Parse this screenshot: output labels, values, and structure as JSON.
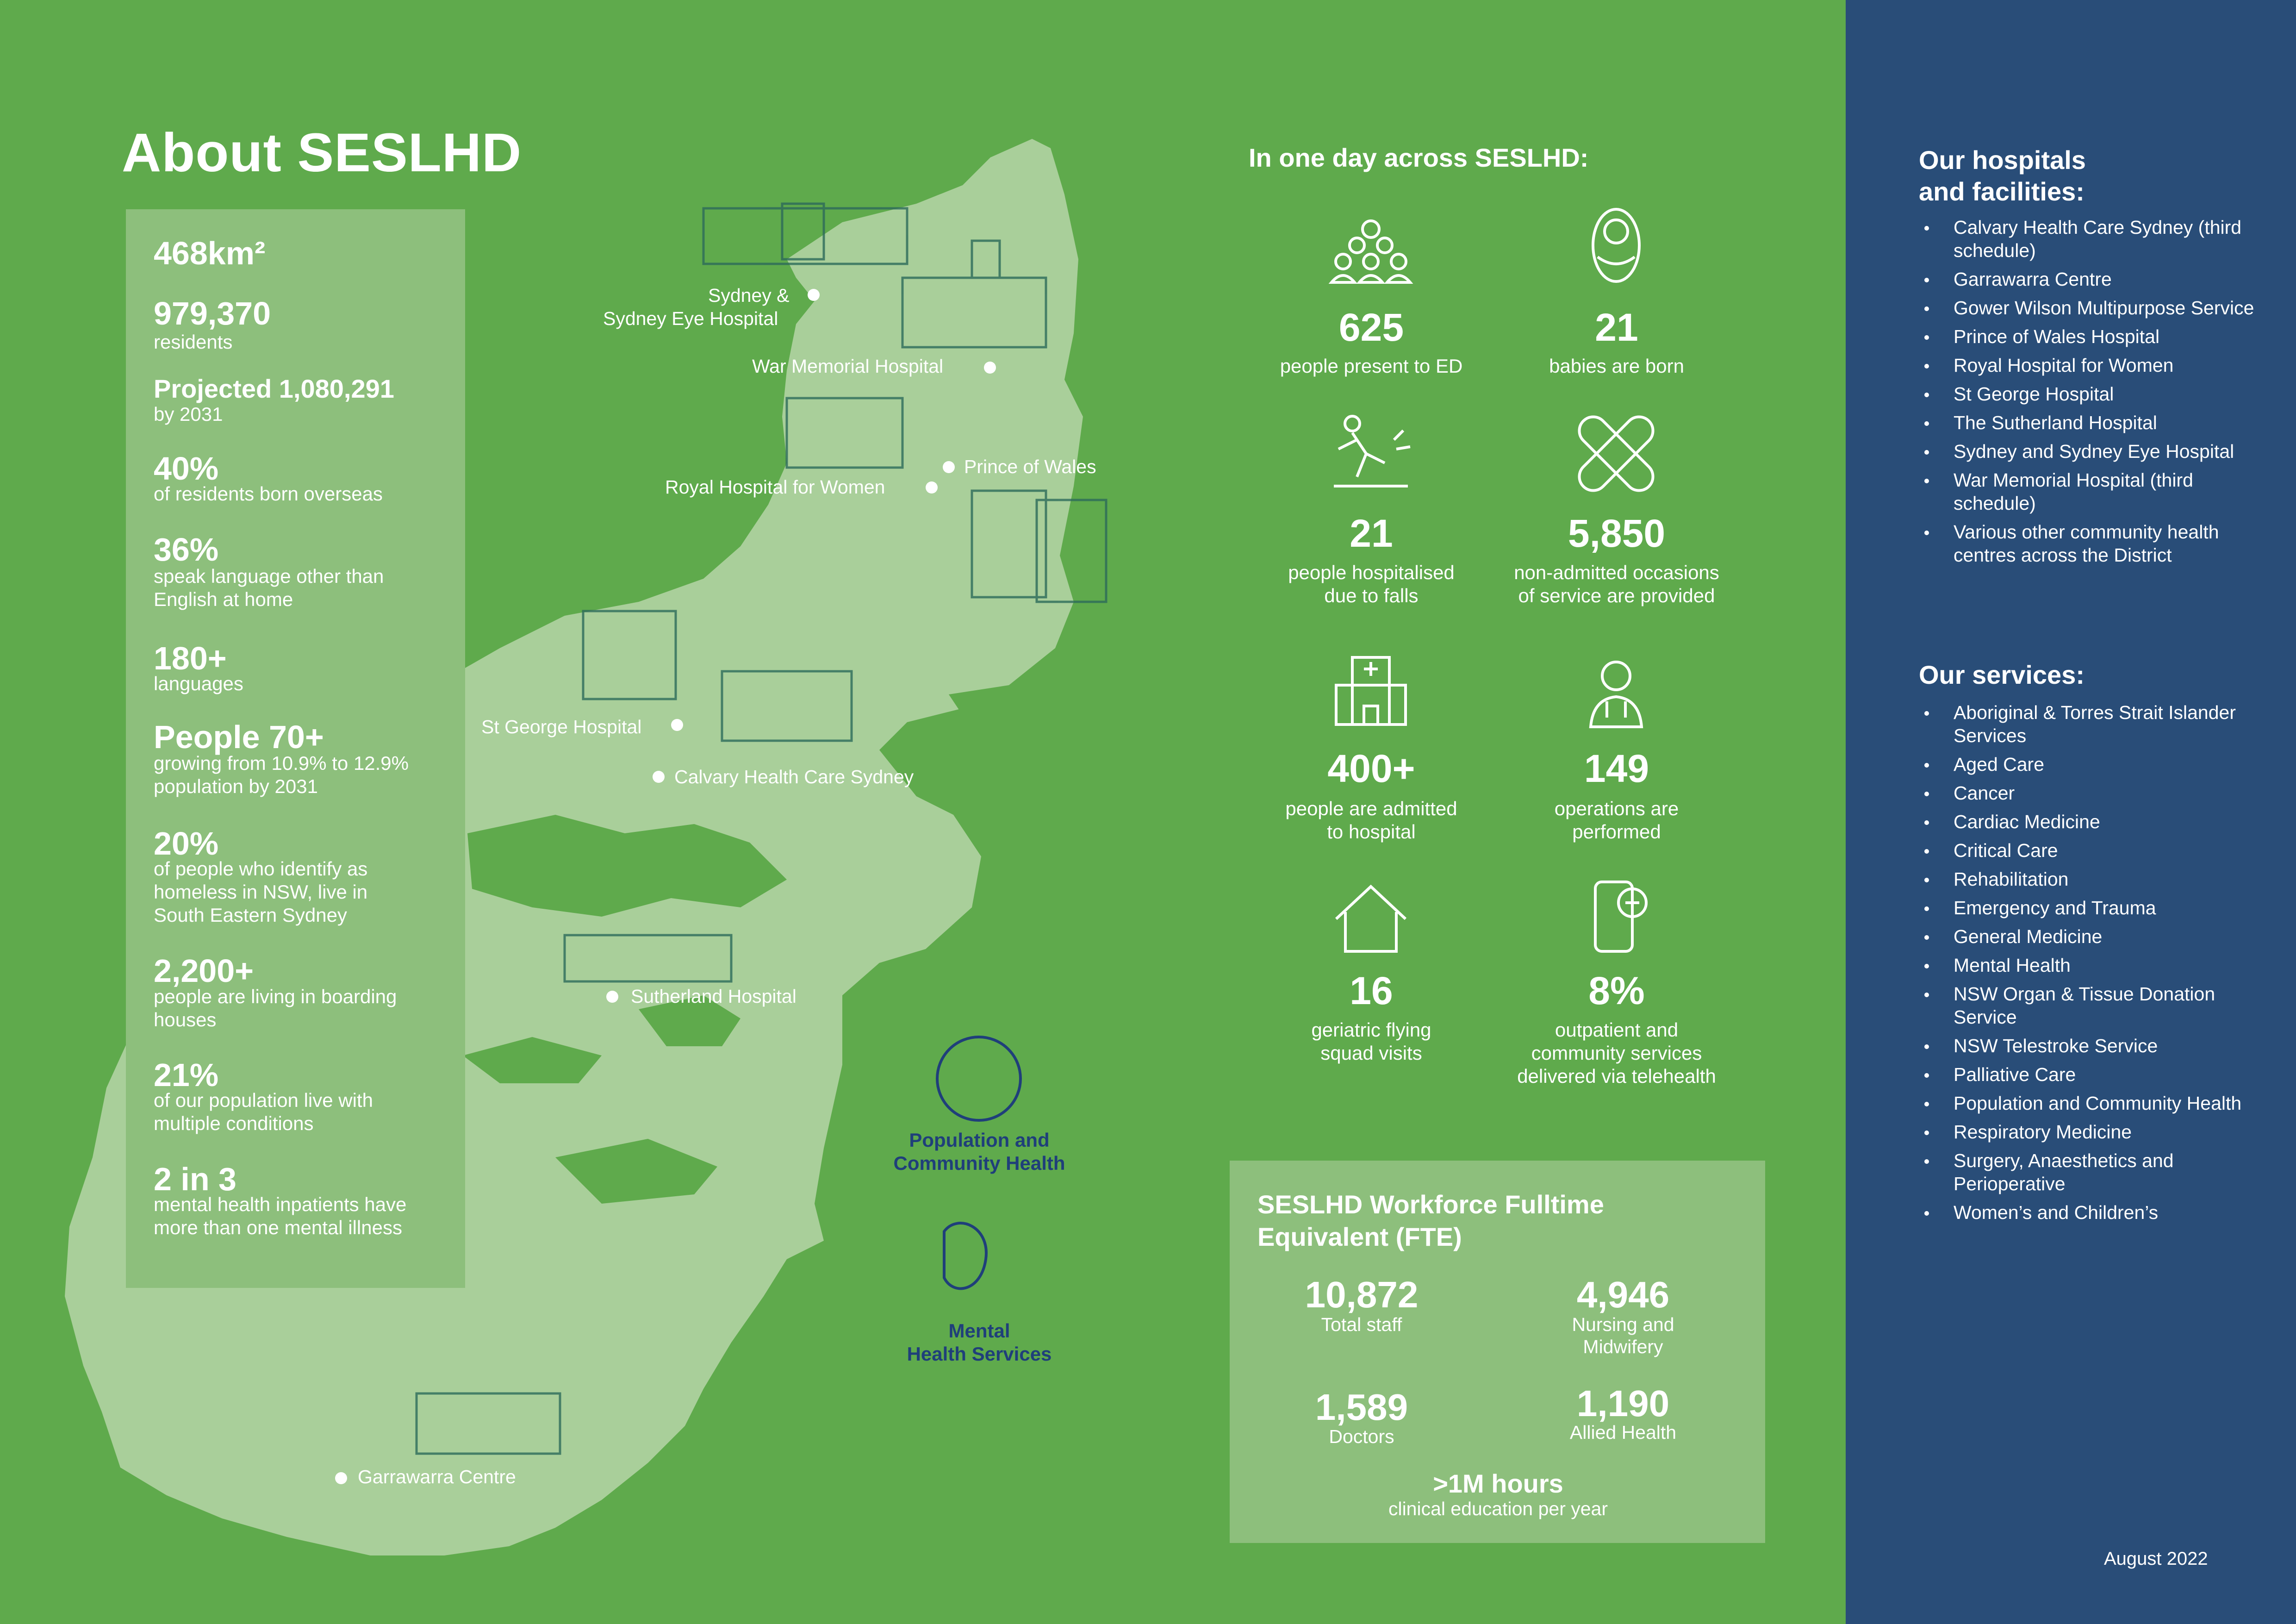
{
  "title": "About SESLHD",
  "stats": [
    {
      "value": "468km²",
      "desc": ""
    },
    {
      "value": "979,370",
      "desc": "residents"
    },
    {
      "value": "Projected 1,080,291",
      "desc": "by 2031"
    },
    {
      "value": "40%",
      "desc": "of residents born overseas"
    },
    {
      "value": "36%",
      "desc": "speak language other than English at home"
    },
    {
      "value": "180+",
      "desc": "languages"
    },
    {
      "value": "People 70+",
      "desc": "growing from 10.9% to 12.9% population by 2031"
    },
    {
      "value": "20%",
      "desc": "of people who identify as homeless in NSW, live in South Eastern Sydney"
    },
    {
      "value": "2,200+",
      "desc": "people are living in boarding houses"
    },
    {
      "value": "21%",
      "desc": "of our population live with multiple conditions"
    },
    {
      "value": "2 in 3",
      "desc": "mental health inpatients have more than one mental illness"
    }
  ],
  "map_labels": {
    "sydney_eye_1": "Sydney &",
    "sydney_eye_2": "Sydney Eye Hospital",
    "war_memorial": "War Memorial Hospital",
    "prince_wales": "Prince of Wales",
    "royal_women": "Royal Hospital for Women",
    "st_george": "St George Hospital",
    "calvary": "Calvary Health Care Sydney",
    "sutherland": "Sutherland Hospital",
    "garrawarra": "Garrawarra Centre",
    "pop_health_1": "Population and",
    "pop_health_2": "Community Health",
    "mental_1": "Mental",
    "mental_2": "Health Services"
  },
  "one_day": {
    "title": "In one day across SESLHD:",
    "items": [
      {
        "icon": "people-group-icon",
        "value": "625",
        "desc1": "people present to ED",
        "desc2": ""
      },
      {
        "icon": "baby-icon",
        "value": "21",
        "desc1": "babies are born",
        "desc2": ""
      },
      {
        "icon": "falling-person-icon",
        "value": "21",
        "desc1": "people hospitalised",
        "desc2": "due to falls"
      },
      {
        "icon": "bandage-icon",
        "value": "5,850",
        "desc1": "non-admitted occasions",
        "desc2": "of service are provided"
      },
      {
        "icon": "hospital-building-icon",
        "value": "400+",
        "desc1": "people are admitted",
        "desc2": "to hospital"
      },
      {
        "icon": "doctor-icon",
        "value": "149",
        "desc1": "operations are",
        "desc2": "performed"
      },
      {
        "icon": "house-icon",
        "value": "16",
        "desc1": "geriatric flying",
        "desc2": "squad visits"
      },
      {
        "icon": "telehealth-phone-icon",
        "value": "8%",
        "desc1": "outpatient and",
        "desc2": "community services",
        "desc3": "delivered via telehealth"
      }
    ]
  },
  "workforce": {
    "title1": "SESLHD Workforce Fulltime",
    "title2": "Equivalent (FTE)",
    "items": [
      {
        "value": "10,872",
        "desc1": "Total staff",
        "desc2": ""
      },
      {
        "value": "4,946",
        "desc1": "Nursing and",
        "desc2": "Midwifery"
      },
      {
        "value": "1,589",
        "desc1": "Doctors",
        "desc2": ""
      },
      {
        "value": "1,190",
        "desc1": "Allied Health",
        "desc2": ""
      }
    ],
    "footer_value": ">1M hours",
    "footer_desc": "clinical education per year"
  },
  "sidebar": {
    "hospitals_title1": "Our hospitals",
    "hospitals_title2": "and facilities:",
    "hospitals": [
      "Calvary Health Care Sydney (third schedule)",
      "Garrawarra Centre",
      "Gower Wilson Multipurpose Service",
      "Prince of Wales Hospital",
      "Royal Hospital for Women",
      "St George Hospital",
      "The Sutherland Hospital",
      "Sydney and Sydney Eye Hospital",
      "War Memorial Hospital (third schedule)",
      "Various other community health centres across the District"
    ],
    "services_title": "Our services:",
    "services": [
      "Aboriginal & Torres Strait Islander Services",
      "Aged Care",
      "Cancer",
      "Cardiac Medicine",
      "Critical Care",
      "Rehabilitation",
      "Emergency and Trauma",
      "General Medicine",
      "Mental Health",
      "NSW Organ & Tissue Donation Service",
      "NSW Telestroke Service",
      "Palliative Care",
      "Population and Community Health",
      "Respiratory Medicine",
      "Surgery, Anaesthetics and Perioperative",
      "Women’s and Children’s"
    ],
    "date": "August 2022"
  },
  "colors": {
    "green": "#5faa4c",
    "light_green": "#8dbf7c",
    "map_land": "#a9cf9a",
    "navy": "#294d78",
    "service_blue": "#1f3f7a"
  }
}
